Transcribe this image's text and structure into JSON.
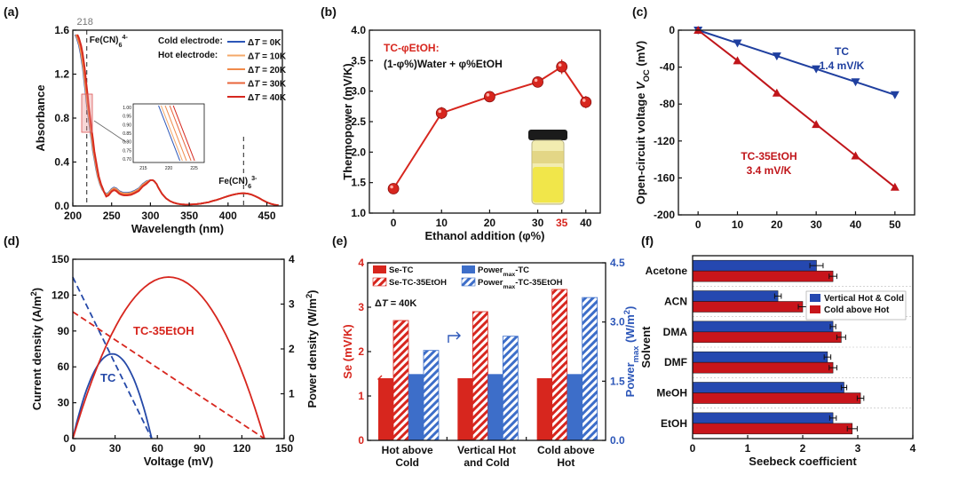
{
  "colors": {
    "red": "#d7261e",
    "blue": "#2549a8",
    "darkred": "#c0151a",
    "navy": "#1f3f9f",
    "hotColors": [
      "#2c56b8",
      "#f4a86a",
      "#f08a4a",
      "#e8643a",
      "#d6281f"
    ]
  },
  "chart_data": [
    {
      "id": "a",
      "panel_label": "(a)",
      "type": "line",
      "xlabel": "Wavelength (nm)",
      "ylabel": "Absorbance",
      "xlim": [
        200,
        470
      ],
      "ylim": [
        0.0,
        1.6
      ],
      "xticks": [
        "200",
        "250",
        "300",
        "350",
        "400",
        "450"
      ],
      "yticks": [
        "0.0",
        "0.4",
        "0.8",
        "1.2",
        "1.6"
      ],
      "ref_lines": [
        "218",
        "420"
      ],
      "annotations": {
        "peak_label": "218",
        "ferro": "Fe(CN)",
        "ferro_sup": "4-",
        "ferro_sub": "6",
        "ferri": "Fe(CN)",
        "ferri_sup": "3-",
        "ferri_sub": "6"
      },
      "legend_headings": [
        "Cold electrode:",
        "Hot electrode:"
      ],
      "series": [
        {
          "name": "ΔT = 0K"
        },
        {
          "name": "ΔT = 10K"
        },
        {
          "name": "ΔT = 20K"
        },
        {
          "name": "ΔT = 30K"
        },
        {
          "name": "ΔT = 40K"
        }
      ],
      "curve": {
        "x": [
          203,
          205,
          208,
          210,
          213,
          215,
          217,
          218,
          220,
          222,
          224,
          226,
          228,
          230,
          232,
          235,
          238,
          240,
          243,
          246,
          250,
          253,
          256,
          260,
          263,
          266,
          270,
          275,
          280,
          285,
          290,
          295,
          300,
          303,
          305,
          308,
          310,
          315,
          320,
          325,
          330,
          335,
          340,
          345,
          350,
          355,
          360,
          365,
          370,
          375,
          380,
          385,
          390,
          395,
          400,
          405,
          410,
          415,
          420,
          425,
          430,
          435,
          440,
          445,
          450,
          455,
          460,
          465
        ],
        "y": [
          1.56,
          1.53,
          1.46,
          1.39,
          1.25,
          1.12,
          1.0,
          0.93,
          0.82,
          0.71,
          0.61,
          0.5,
          0.42,
          0.34,
          0.27,
          0.2,
          0.15,
          0.13,
          0.11,
          0.12,
          0.155,
          0.168,
          0.16,
          0.135,
          0.125,
          0.12,
          0.12,
          0.125,
          0.14,
          0.16,
          0.2,
          0.225,
          0.235,
          0.235,
          0.225,
          0.2,
          0.17,
          0.11,
          0.07,
          0.045,
          0.03,
          0.02,
          0.015,
          0.013,
          0.013,
          0.015,
          0.018,
          0.022,
          0.028,
          0.035,
          0.045,
          0.055,
          0.066,
          0.078,
          0.09,
          0.1,
          0.108,
          0.114,
          0.116,
          0.113,
          0.104,
          0.09,
          0.072,
          0.052,
          0.034,
          0.02,
          0.011,
          0.006
        ],
        "shifts": [
          0,
          0.25,
          0.5,
          0.75,
          1.0
        ]
      },
      "inset": {
        "xticks": [
          "215",
          "220",
          "225"
        ],
        "yticks": [
          "1.00",
          "0.95",
          "0.90",
          "0.85",
          "0.80",
          "0.75",
          "0.70"
        ],
        "x_starts": [
          218.0,
          218.5,
          219.3,
          220.2,
          220.9
        ]
      }
    },
    {
      "id": "b",
      "panel_label": "(b)",
      "type": "line",
      "xlabel": "Ethanol addition (φ%)",
      "ylabel": "Thermopower (mV/K)",
      "xlim": [
        -5,
        43
      ],
      "ylim": [
        1.0,
        4.0
      ],
      "xticks": [
        "0",
        "10",
        "20",
        "30",
        "35",
        "40"
      ],
      "yticks": [
        "1.0",
        "1.5",
        "2.0",
        "2.5",
        "3.0",
        "3.5",
        "4.0"
      ],
      "title_lines": [
        "TC-φEtOH:",
        "(1-φ%)Water + φ%EtOH"
      ],
      "x": [
        0,
        10,
        20,
        30,
        35,
        40
      ],
      "y": [
        1.4,
        2.64,
        2.91,
        3.15,
        3.4,
        2.82
      ],
      "err": [
        0.03,
        0.1,
        0.08,
        0.06,
        0.12,
        0.1
      ]
    },
    {
      "id": "c",
      "panel_label": "(c)",
      "type": "line",
      "xlabel": "",
      "ylabel": "Open-circuit voltage V",
      "ylabel_sub": "OC",
      "ylabel_unit": " (mV)",
      "xlim": [
        -5,
        55
      ],
      "ylim": [
        -200,
        0
      ],
      "xticks": [
        "0",
        "10",
        "20",
        "30",
        "40",
        "50"
      ],
      "yticks": [
        "0",
        "-40",
        "-80",
        "-120",
        "-160",
        "-200"
      ],
      "series": [
        {
          "name": "TC",
          "note": "1.4 mV/K",
          "x": [
            0,
            10,
            20,
            30,
            40,
            50
          ],
          "y": [
            0,
            -14,
            -28,
            -42,
            -56,
            -70
          ]
        },
        {
          "name": "TC-35EtOH",
          "note": "3.4 mV/K",
          "x": [
            0,
            10,
            20,
            30,
            40,
            50
          ],
          "y": [
            0,
            -33,
            -68,
            -102,
            -136,
            -170
          ]
        }
      ]
    },
    {
      "id": "d",
      "panel_label": "(d)",
      "type": "line",
      "xlabel": "Voltage (mV)",
      "ylabel": "Current density (A/m",
      "ylabel_sup": "2",
      "ylabel_end": ")",
      "y2label": "Power density (W/m",
      "y2label_sup": "2",
      "y2label_end": ")",
      "xlim": [
        0,
        150
      ],
      "ylim": [
        0,
        150
      ],
      "y2lim": [
        0,
        4
      ],
      "xticks": [
        "0",
        "30",
        "60",
        "90",
        "120",
        "150"
      ],
      "yticks": [
        "0",
        "30",
        "60",
        "90",
        "120",
        "150"
      ],
      "y2ticks": [
        "0",
        "1",
        "2",
        "3",
        "4"
      ],
      "series": [
        {
          "name": "TC",
          "voc": 56,
          "isc": 135
        },
        {
          "name": "TC-35EtOH",
          "voc": 136,
          "isc": 106
        }
      ]
    },
    {
      "id": "e",
      "panel_label": "(e)",
      "type": "bar",
      "ylabel": "Se (mV/K)",
      "y2label": "Power",
      "y2label_sub": "max",
      "y2label_unit": " (W/m",
      "y2label_sup": "2",
      "y2label_end": ")",
      "ylim": [
        0,
        4
      ],
      "y2lim": [
        0,
        4.5
      ],
      "yticks": [
        "0",
        "1",
        "2",
        "3",
        "4"
      ],
      "y2ticks": [
        "0.0",
        "1.5",
        "3.0",
        "4.5"
      ],
      "condition": "ΔT = 40K",
      "categories": [
        "Hot above|Cold",
        "Vertical Hot|and Cold",
        "Cold above|Hot"
      ],
      "legend": [
        "Se-TC",
        "Se-TC-35EtOH",
        "Power|max|-TC",
        "Power|max|-TC-35EtOH"
      ],
      "series": [
        {
          "name": "Se-TC",
          "values": [
            1.4,
            1.4,
            1.4
          ]
        },
        {
          "name": "Se-TC-35EtOH",
          "values": [
            2.7,
            2.9,
            3.4
          ]
        },
        {
          "name": "Powermax-TC",
          "values": [
            1.68,
            1.68,
            1.68
          ]
        },
        {
          "name": "Powermax-TC-35EtOH",
          "values": [
            2.28,
            2.64,
            3.62
          ]
        }
      ]
    },
    {
      "id": "f",
      "panel_label": "(f)",
      "type": "bar",
      "orientation": "horizontal",
      "xlabel": "Seebeck coefficient",
      "ylabel": "Solvent",
      "xlim": [
        0,
        4
      ],
      "xticks": [
        "0",
        "1",
        "2",
        "3",
        "4"
      ],
      "categories": [
        "Acetone",
        "ACN",
        "DMA",
        "DMF",
        "MeOH",
        "EtOH"
      ],
      "series": [
        {
          "name": "Vertical Hot & Cold",
          "values": [
            2.25,
            1.55,
            2.55,
            2.45,
            2.75,
            2.55
          ],
          "err": [
            0.12,
            0.06,
            0.05,
            0.06,
            0.05,
            0.06
          ]
        },
        {
          "name": "Cold above Hot",
          "values": [
            2.55,
            2.0,
            2.7,
            2.55,
            3.05,
            2.9
          ],
          "err": [
            0.07,
            0.08,
            0.08,
            0.07,
            0.06,
            0.09
          ]
        }
      ]
    }
  ]
}
